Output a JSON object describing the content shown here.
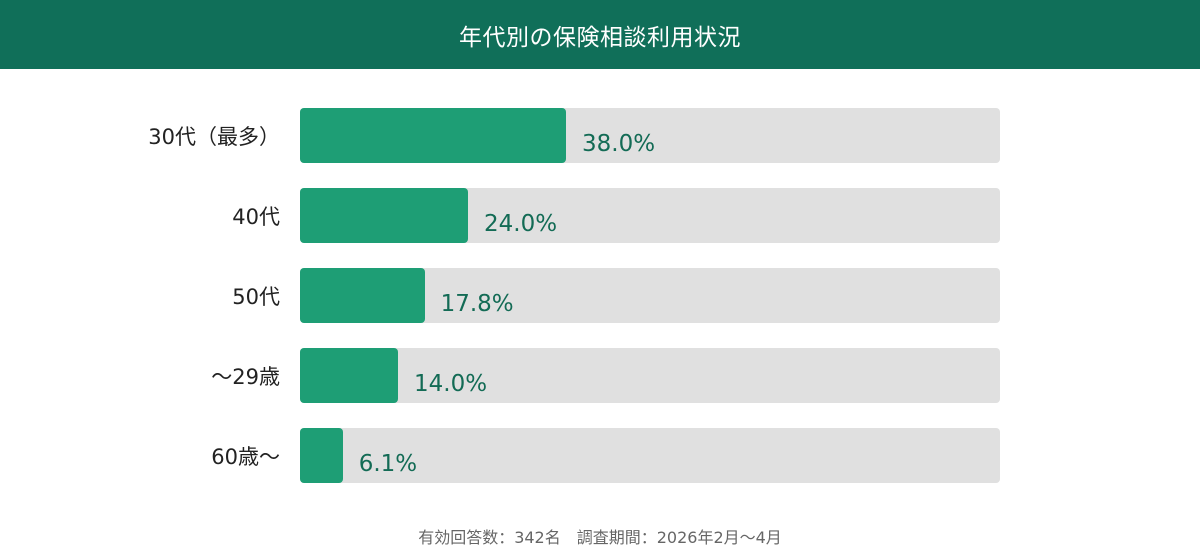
{
  "header": {
    "title": "年代別の保険相談利用状況"
  },
  "footer": {
    "note": "有効回答数：342名　調査期間：2026年2月〜4月"
  },
  "colors": {
    "header_bg": "#106f59",
    "bar_fill": "#1e9e75",
    "bar_track": "#e0e0e0",
    "value_text": "#136b55"
  },
  "chart_data": {
    "type": "bar",
    "orientation": "horizontal",
    "title": "年代別の保険相談利用状況",
    "categories": [
      "30代（最多）",
      "40代",
      "50代",
      "〜29歳",
      "60歳〜"
    ],
    "values": [
      38.0,
      24.0,
      17.8,
      14.0,
      6.1
    ],
    "value_labels": [
      "38.0%",
      "24.0%",
      "17.8%",
      "14.0%",
      "6.1%"
    ],
    "xlim": [
      0,
      100
    ],
    "unit": "%",
    "grid": false,
    "legend": null,
    "note": "有効回答数：342名　調査期間：2026年2月〜4月"
  }
}
